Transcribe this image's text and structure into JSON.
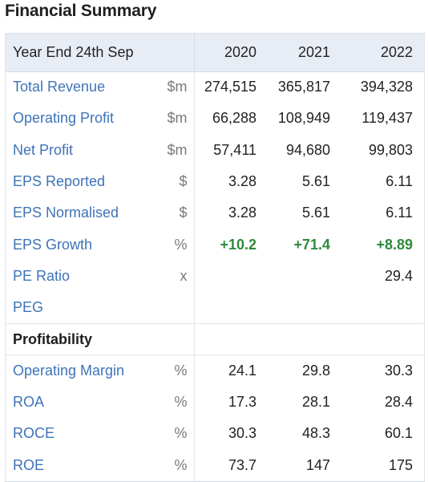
{
  "title": "Financial Summary",
  "header": {
    "label": "Year End 24th Sep",
    "years": [
      "2020",
      "2021",
      "2022"
    ]
  },
  "rows": [
    {
      "label": "Total Revenue",
      "unit": "$m",
      "values": [
        "274,515",
        "365,817",
        "394,328"
      ]
    },
    {
      "label": "Operating Profit",
      "unit": "$m",
      "values": [
        "66,288",
        "108,949",
        "119,437"
      ]
    },
    {
      "label": "Net Profit",
      "unit": "$m",
      "values": [
        "57,411",
        "94,680",
        "99,803"
      ]
    },
    {
      "label": "EPS Reported",
      "unit": "$",
      "values": [
        "3.28",
        "5.61",
        "6.11"
      ]
    },
    {
      "label": "EPS Normalised",
      "unit": "$",
      "values": [
        "3.28",
        "5.61",
        "6.11"
      ]
    },
    {
      "label": "EPS Growth",
      "unit": "%",
      "values": [
        "+10.2",
        "+71.4",
        "+8.89"
      ],
      "positive": true
    },
    {
      "label": "PE Ratio",
      "unit": "x",
      "values": [
        "",
        "",
        "29.4"
      ]
    },
    {
      "label": "PEG",
      "unit": "",
      "values": [
        "",
        "",
        ""
      ]
    }
  ],
  "profitability": {
    "section_label": "Profitability",
    "rows": [
      {
        "label": "Operating Margin",
        "unit": "%",
        "values": [
          "24.1",
          "29.8",
          "30.3"
        ]
      },
      {
        "label": "ROA",
        "unit": "%",
        "values": [
          "17.3",
          "28.1",
          "28.4"
        ]
      },
      {
        "label": "ROCE",
        "unit": "%",
        "values": [
          "30.3",
          "48.3",
          "60.1"
        ]
      },
      {
        "label": "ROE",
        "unit": "%",
        "values": [
          "73.7",
          "147",
          "175"
        ]
      }
    ]
  },
  "colors": {
    "link_blue": "#3f73b8",
    "positive_green": "#2e8b3a",
    "header_bg": "#e8edf5"
  }
}
